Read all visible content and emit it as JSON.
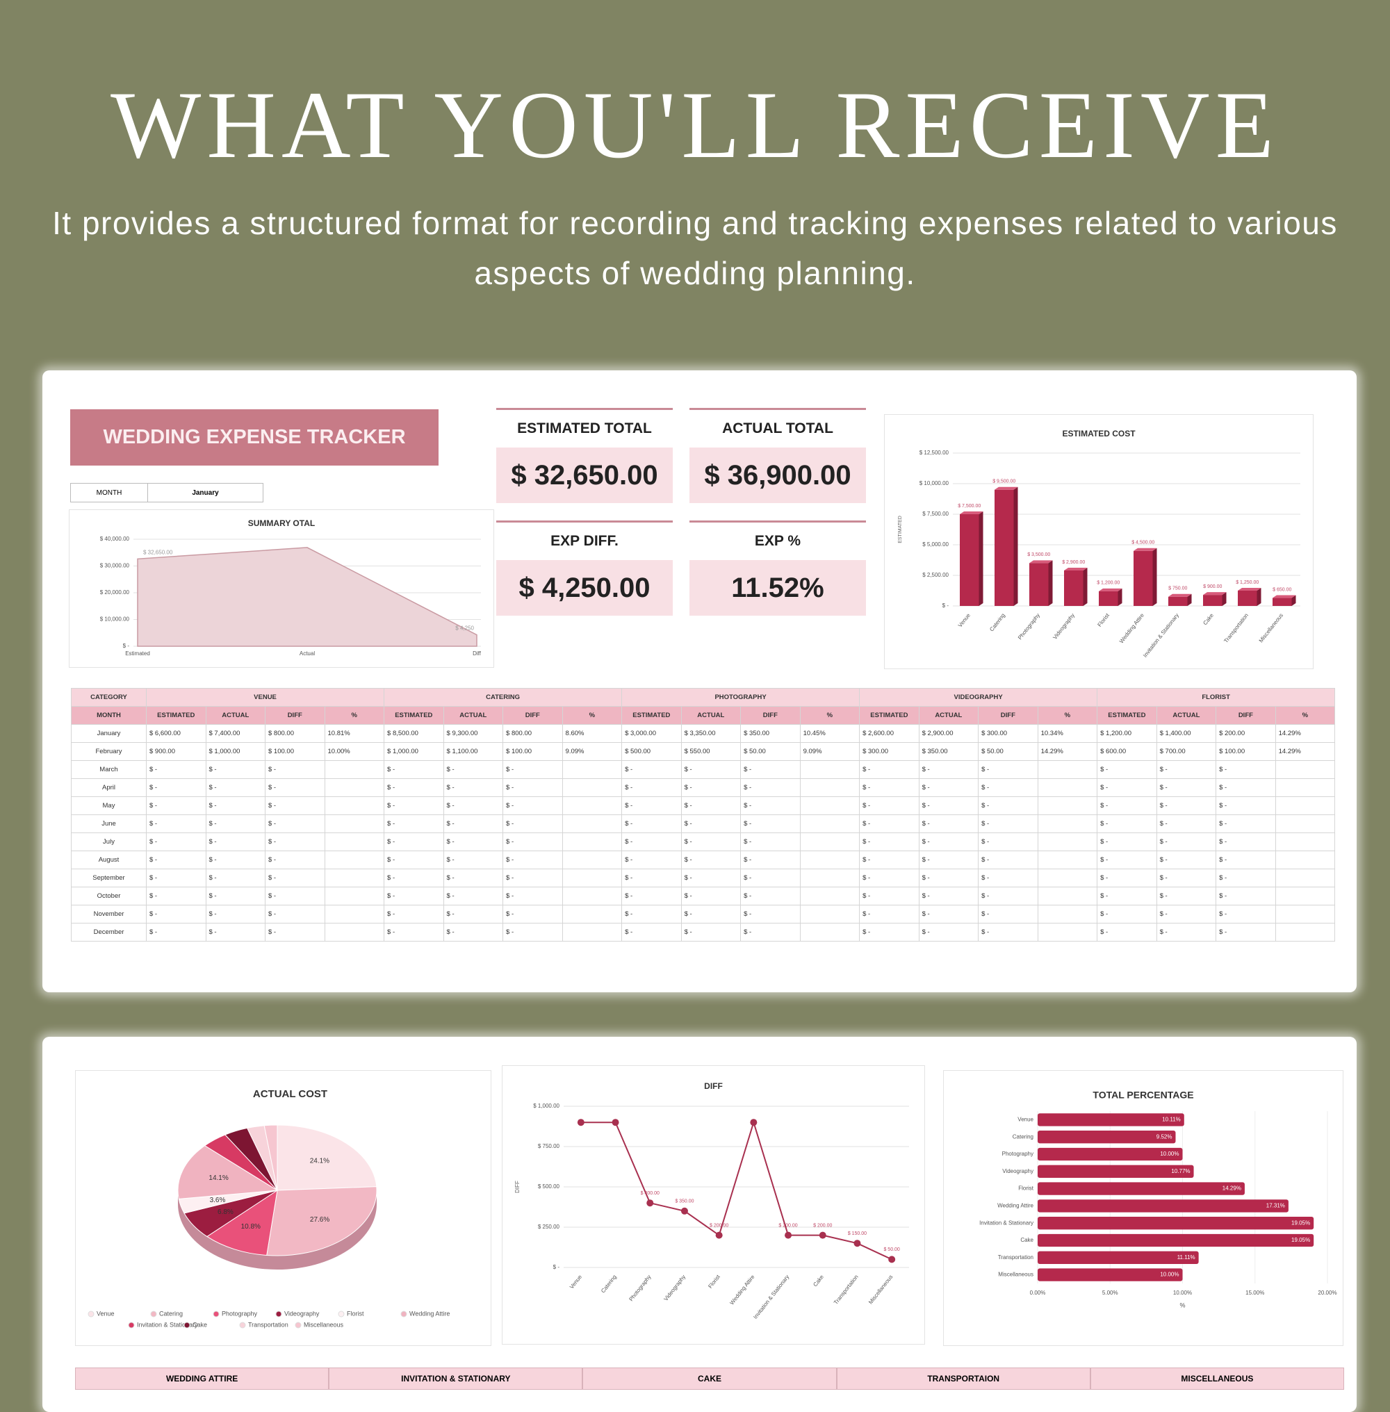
{
  "header": {
    "title": "WHAT YOU'LL RECEIVE",
    "subtitle": "It provides a structured format for recording and tracking expenses related to various aspects of wedding planning."
  },
  "tracker": {
    "title": "WEDDING EXPENSE TRACKER",
    "month_label": "MONTH",
    "month": "January",
    "kpis": [
      {
        "label": "ESTIMATED TOTAL",
        "value": "$ 32,650.00"
      },
      {
        "label": "ACTUAL TOTAL",
        "value": "$ 36,900.00"
      },
      {
        "label": "EXP DIFF.",
        "value": "$ 4,250.00"
      },
      {
        "label": "EXP %",
        "value": "11.52%"
      }
    ]
  },
  "table": {
    "corner": [
      "CATEGORY",
      "MONTH"
    ],
    "groups": [
      "VENUE",
      "CATERING",
      "PHOTOGRAPHY",
      "VIDEOGRAPHY",
      "FLORIST"
    ],
    "sub_headers": [
      "ESTIMATED",
      "ACTUAL",
      "DIFF",
      "%"
    ],
    "rows": [
      {
        "month": "January",
        "cells": [
          "$ 6,600.00",
          "$ 7,400.00",
          "$ 800.00",
          "10.81%",
          "$ 8,500.00",
          "$ 9,300.00",
          "$ 800.00",
          "8.60%",
          "$ 3,000.00",
          "$ 3,350.00",
          "$ 350.00",
          "10.45%",
          "$ 2,600.00",
          "$ 2,900.00",
          "$ 300.00",
          "10.34%",
          "$ 1,200.00",
          "$ 1,400.00",
          "$ 200.00",
          "14.29%"
        ]
      },
      {
        "month": "February",
        "cells": [
          "$ 900.00",
          "$ 1,000.00",
          "$ 100.00",
          "10.00%",
          "$ 1,000.00",
          "$ 1,100.00",
          "$ 100.00",
          "9.09%",
          "$ 500.00",
          "$ 550.00",
          "$ 50.00",
          "9.09%",
          "$ 300.00",
          "$ 350.00",
          "$ 50.00",
          "14.29%",
          "$ 600.00",
          "$ 700.00",
          "$ 100.00",
          "14.29%"
        ]
      },
      {
        "month": "March",
        "cells": [
          "$ -",
          "$ -",
          "$ -",
          null,
          "$ -",
          "$ -",
          "$ -",
          null,
          "$ -",
          "$ -",
          "$ -",
          null,
          "$ -",
          "$ -",
          "$ -",
          null,
          "$ -",
          "$ -",
          "$ -",
          null
        ]
      },
      {
        "month": "April",
        "cells": [
          "$ -",
          "$ -",
          "$ -",
          null,
          "$ -",
          "$ -",
          "$ -",
          null,
          "$ -",
          "$ -",
          "$ -",
          null,
          "$ -",
          "$ -",
          "$ -",
          null,
          "$ -",
          "$ -",
          "$ -",
          null
        ]
      },
      {
        "month": "May",
        "cells": [
          "$ -",
          "$ -",
          "$ -",
          null,
          "$ -",
          "$ -",
          "$ -",
          null,
          "$ -",
          "$ -",
          "$ -",
          null,
          "$ -",
          "$ -",
          "$ -",
          null,
          "$ -",
          "$ -",
          "$ -",
          null
        ]
      },
      {
        "month": "June",
        "cells": [
          "$ -",
          "$ -",
          "$ -",
          null,
          "$ -",
          "$ -",
          "$ -",
          null,
          "$ -",
          "$ -",
          "$ -",
          null,
          "$ -",
          "$ -",
          "$ -",
          null,
          "$ -",
          "$ -",
          "$ -",
          null
        ]
      },
      {
        "month": "July",
        "cells": [
          "$ -",
          "$ -",
          "$ -",
          null,
          "$ -",
          "$ -",
          "$ -",
          null,
          "$ -",
          "$ -",
          "$ -",
          null,
          "$ -",
          "$ -",
          "$ -",
          null,
          "$ -",
          "$ -",
          "$ -",
          null
        ]
      },
      {
        "month": "August",
        "cells": [
          "$ -",
          "$ -",
          "$ -",
          null,
          "$ -",
          "$ -",
          "$ -",
          null,
          "$ -",
          "$ -",
          "$ -",
          null,
          "$ -",
          "$ -",
          "$ -",
          null,
          "$ -",
          "$ -",
          "$ -",
          null
        ]
      },
      {
        "month": "September",
        "cells": [
          "$ -",
          "$ -",
          "$ -",
          null,
          "$ -",
          "$ -",
          "$ -",
          null,
          "$ -",
          "$ -",
          "$ -",
          null,
          "$ -",
          "$ -",
          "$ -",
          null,
          "$ -",
          "$ -",
          "$ -",
          null
        ]
      },
      {
        "month": "October",
        "cells": [
          "$ -",
          "$ -",
          "$ -",
          null,
          "$ -",
          "$ -",
          "$ -",
          null,
          "$ -",
          "$ -",
          "$ -",
          null,
          "$ -",
          "$ -",
          "$ -",
          null,
          "$ -",
          "$ -",
          "$ -",
          null
        ]
      },
      {
        "month": "November",
        "cells": [
          "$ -",
          "$ -",
          "$ -",
          null,
          "$ -",
          "$ -",
          "$ -",
          null,
          "$ -",
          "$ -",
          "$ -",
          null,
          "$ -",
          "$ -",
          "$ -",
          null,
          "$ -",
          "$ -",
          "$ -",
          null
        ]
      },
      {
        "month": "December",
        "cells": [
          "$ -",
          "$ -",
          "$ -",
          null,
          "$ -",
          "$ -",
          "$ -",
          null,
          "$ -",
          "$ -",
          "$ -",
          null,
          "$ -",
          "$ -",
          "$ -",
          null,
          "$ -",
          "$ -",
          "$ -",
          null
        ]
      }
    ]
  },
  "bottom_table": {
    "groups": [
      "WEDDING ATTIRE",
      "INVITATION & STATIONARY",
      "CAKE",
      "TRANSPORTAION",
      "MISCELLANEOUS"
    ]
  },
  "chart_data": [
    {
      "type": "area",
      "title": "SUMMARY OTAL",
      "categories": [
        "Estimated",
        "Actual",
        "Diff"
      ],
      "values": [
        32650,
        36900,
        4250
      ],
      "value_labels": [
        "$ 32,650.00",
        null,
        "$ 4,250"
      ],
      "color": "#ecd4d8",
      "ylim": [
        0,
        40000
      ],
      "yticks": [
        {
          "value": 0,
          "label": "$ -"
        },
        {
          "value": 10000,
          "label": "$ 10,000.00"
        },
        {
          "value": 20000,
          "label": "$ 20,000.00"
        },
        {
          "value": 30000,
          "label": "$ 30,000.00"
        },
        {
          "value": 40000,
          "label": "$ 40,000.00"
        }
      ],
      "grid": true
    },
    {
      "type": "bar",
      "title": "ESTIMATED COST",
      "y_label": "ESTIMATED",
      "categories": [
        "Venue",
        "Catering",
        "Photography",
        "Videography",
        "Florist",
        "Wedding Attire",
        "Invitation & Stationary",
        "Cake",
        "Transportation",
        "Miscellaneous"
      ],
      "values": [
        7500,
        9500,
        3500,
        2900,
        1200,
        4500,
        750,
        900,
        1250,
        650
      ],
      "value_labels": [
        "$ 7,500.00",
        "$ 9,500.00",
        "$ 3,500.00",
        "$ 2,900.00",
        "$ 1,200.00",
        "$ 4,500.00",
        "$ 750.00",
        "$ 900.00",
        "$ 1,250.00",
        "$ 650.00"
      ],
      "color": "#b5294c",
      "ylim": [
        0,
        12500
      ],
      "yticks": [
        {
          "value": 0,
          "label": "$ -"
        },
        {
          "value": 2500,
          "label": "$ 2,500.00"
        },
        {
          "value": 5000,
          "label": "$ 5,000.00"
        },
        {
          "value": 7500,
          "label": "$ 7,500.00"
        },
        {
          "value": 10000,
          "label": "$ 10,000.00"
        },
        {
          "value": 12500,
          "label": "$ 12,500.00"
        }
      ],
      "grid": true
    },
    {
      "type": "pie",
      "title": "ACTUAL COST",
      "categories": [
        "Venue",
        "Catering",
        "Photography",
        "Videography",
        "Florist",
        "Wedding Attire",
        "Invitation & Stationary",
        "Cake",
        "Transportation",
        "Miscellaneous"
      ],
      "values": [
        24.1,
        27.6,
        10.8,
        6.8,
        3.6,
        14.1,
        4.2,
        3.9,
        2.8,
        2.1
      ],
      "value_labels": [
        "24.1%",
        "27.6%",
        "10.8%",
        "6.8%",
        "3.6%",
        "14.1%",
        null,
        null,
        null,
        null
      ],
      "colors": [
        "#fbe4e8",
        "#f2b8c4",
        "#e9517a",
        "#9c1d40",
        "#fdf0f2",
        "#f0b3c0",
        "#d73a63",
        "#7d1532",
        "#f7d3da",
        "#f6c6d0"
      ]
    },
    {
      "type": "line",
      "title": "DIFF",
      "y_label": "DIFF",
      "categories": [
        "Venue",
        "Catering",
        "Photography",
        "Videography",
        "Florist",
        "Wedding Attire",
        "Invitation & Stationary",
        "Cake",
        "Transportation",
        "Miscellaneous"
      ],
      "values": [
        900,
        900,
        400,
        350,
        200,
        900,
        200,
        200,
        150,
        50
      ],
      "value_labels": [
        null,
        null,
        "$ 400.00",
        "$ 350.00",
        "$ 200.00",
        null,
        "$ 200.00",
        "$ 200.00",
        "$ 150.00",
        "$ 50.00"
      ],
      "color": "#a8304f",
      "ylim": [
        0,
        1000
      ],
      "yticks": [
        {
          "value": 0,
          "label": "$ -"
        },
        {
          "value": 250,
          "label": "$ 250.00"
        },
        {
          "value": 500,
          "label": "$ 500.00"
        },
        {
          "value": 750,
          "label": "$ 750.00"
        },
        {
          "value": 1000,
          "label": "$ 1,000.00"
        }
      ],
      "grid": true
    },
    {
      "type": "hbar",
      "title": "TOTAL PERCENTAGE",
      "x_label": "%",
      "categories": [
        "Venue",
        "Catering",
        "Photography",
        "Videography",
        "Florist",
        "Wedding Attire",
        "Invitation & Stationary",
        "Cake",
        "Transportation",
        "Miscellaneous"
      ],
      "values": [
        10.11,
        9.52,
        10.0,
        10.77,
        14.29,
        17.31,
        19.05,
        19.05,
        11.11,
        10.0
      ],
      "value_labels": [
        "10.11%",
        "9.52%",
        "10.00%",
        "10.77%",
        "14.29%",
        "17.31%",
        "19.05%",
        "19.05%",
        "11.11%",
        "10.00%"
      ],
      "color": "#b5294c",
      "xlim": [
        0,
        20
      ],
      "xticks": [
        {
          "value": 0,
          "label": "0.00%"
        },
        {
          "value": 5,
          "label": "5.00%"
        },
        {
          "value": 10,
          "label": "10.00%"
        },
        {
          "value": 15,
          "label": "15.00%"
        },
        {
          "value": 20,
          "label": "20.00%"
        }
      ],
      "grid": true
    }
  ]
}
